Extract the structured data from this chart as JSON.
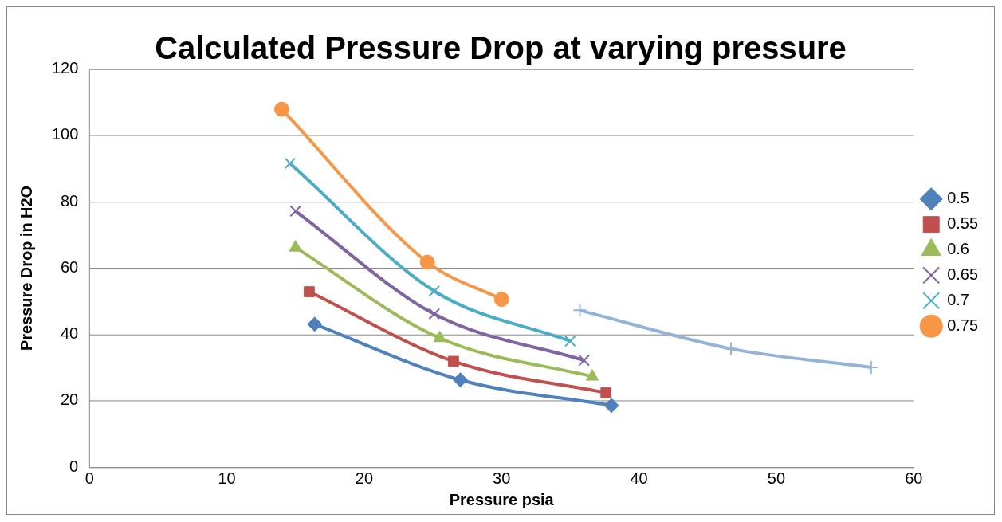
{
  "chart_data": {
    "type": "line",
    "title": "Calculated Pressure Drop at varying pressure",
    "xlabel": "Pressure psia",
    "ylabel": "Pressure Drop in H2O",
    "xlim": [
      0,
      60
    ],
    "xticks": [
      0,
      10,
      20,
      30,
      40,
      50,
      60
    ],
    "ylim": [
      0,
      120
    ],
    "yticks": [
      0,
      20,
      40,
      60,
      80,
      100,
      120
    ],
    "grid": "y",
    "legend": "right",
    "line_style": "solid",
    "series": [
      {
        "name": "0.5",
        "color": "#4f81bd",
        "marker": "diamond",
        "x": [
          16.4,
          27.0,
          38.0
        ],
        "values": [
          43.1,
          26.3,
          18.6
        ]
      },
      {
        "name": "0.55",
        "color": "#c0504d",
        "marker": "square",
        "x": [
          16.0,
          26.5,
          37.6
        ],
        "values": [
          52.9,
          31.9,
          22.4
        ]
      },
      {
        "name": "0.6",
        "color": "#9bbb59",
        "marker": "triangle",
        "x": [
          15.0,
          25.5,
          36.6
        ],
        "values": [
          66.2,
          38.9,
          27.3
        ]
      },
      {
        "name": "0.65",
        "color": "#8064a2",
        "marker": "cross",
        "x": [
          15.0,
          25.1,
          36.0
        ],
        "values": [
          77.2,
          46.2,
          32.2
        ]
      },
      {
        "name": "0.7",
        "color": "#4bacc6",
        "marker": "cross",
        "x": [
          14.6,
          25.1,
          35.0
        ],
        "values": [
          91.6,
          53.1,
          38.0
        ]
      },
      {
        "name": "0.75",
        "color": "#f79646",
        "marker": "circle",
        "x": [
          14.0,
          24.6,
          30.0
        ],
        "values": [
          107.9,
          61.8,
          50.6
        ]
      },
      {
        "color": "#95b3d7",
        "marker": "cross",
        "x": [
          35.7,
          46.7,
          56.9
        ],
        "values": [
          47.3,
          35.7,
          30.1
        ]
      }
    ]
  }
}
